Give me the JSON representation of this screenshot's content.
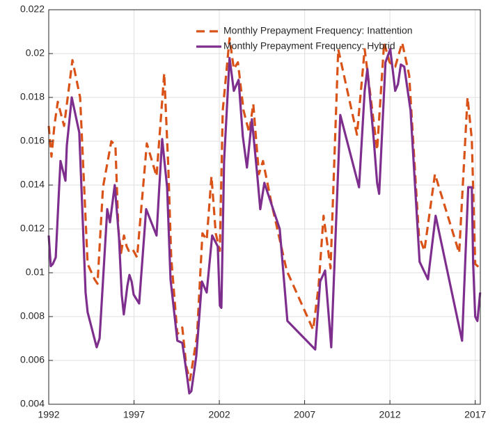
{
  "chart_data": {
    "type": "line",
    "xlim": [
      1992,
      2017.3
    ],
    "xticks": [
      1992,
      1997,
      2002,
      2007,
      2012,
      2017
    ],
    "ylim": [
      0.004,
      0.022
    ],
    "yticks": [
      0.004,
      0.006,
      0.008,
      0.01,
      0.012,
      0.014,
      0.016,
      0.018,
      0.02,
      0.022
    ],
    "grid": true,
    "legend": "upper right",
    "series": [
      {
        "name": "Monthly Prepayment Frequency: Inattention",
        "color": "#d95319",
        "linestyle": "dashed",
        "x": [
          1992.0,
          1992.16,
          1992.33,
          1992.53,
          1992.9,
          1993.39,
          1993.84,
          1994.28,
          1994.69,
          1994.86,
          1995.18,
          1995.67,
          1995.91,
          1996.08,
          1996.24,
          1996.41,
          1996.57,
          1996.69,
          1996.9,
          1997.18,
          1997.75,
          1998.32,
          1998.77,
          1999.01,
          1999.18,
          1999.54,
          1999.83,
          2000.07,
          2000.28,
          2000.69,
          2001.01,
          2001.26,
          2001.54,
          2001.79,
          2002.03,
          2002.2,
          2002.6,
          2002.85,
          2003.09,
          2003.42,
          2003.75,
          2003.99,
          2004.32,
          2004.56,
          2005.05,
          2005.95,
          2007.5,
          2007.82,
          2008.11,
          2008.52,
          2008.97,
          2010.07,
          2010.52,
          2010.92,
          2011.25,
          2011.66,
          2011.98,
          2012.31,
          2012.72,
          2013.13,
          2013.7,
          2014.02,
          2014.64,
          2016.06,
          2016.55,
          2016.8,
          2017.0,
          2017.29
        ],
        "values": [
          0.0167,
          0.0153,
          0.0167,
          0.0178,
          0.0167,
          0.0197,
          0.018,
          0.0104,
          0.0097,
          0.0095,
          0.0139,
          0.016,
          0.0158,
          0.012,
          0.0109,
          0.0117,
          0.0112,
          0.011,
          0.0111,
          0.0107,
          0.0159,
          0.0144,
          0.0191,
          0.0148,
          0.0107,
          0.0072,
          0.0075,
          0.0057,
          0.0051,
          0.0071,
          0.0118,
          0.0115,
          0.0144,
          0.0118,
          0.011,
          0.0174,
          0.0207,
          0.0193,
          0.0196,
          0.0174,
          0.0164,
          0.0177,
          0.0145,
          0.0151,
          0.0132,
          0.0101,
          0.0074,
          0.0094,
          0.0126,
          0.0102,
          0.0202,
          0.0163,
          0.0202,
          0.0177,
          0.0156,
          0.0205,
          0.0196,
          0.0194,
          0.0205,
          0.019,
          0.0117,
          0.011,
          0.0145,
          0.0109,
          0.018,
          0.0161,
          0.0104,
          0.0102
        ]
      },
      {
        "name": "Monthly Prepayment Frequency: Hybrid",
        "color": "#7e2f8e",
        "linestyle": "solid",
        "x": [
          1992.0,
          1992.12,
          1992.24,
          1992.41,
          1992.61,
          1992.69,
          1992.98,
          1993.06,
          1993.35,
          1993.79,
          1994.16,
          1994.28,
          1994.81,
          1994.98,
          1995.43,
          1995.59,
          1995.87,
          1996.12,
          1996.28,
          1996.4,
          1996.61,
          1996.73,
          1996.86,
          1996.98,
          1997.3,
          1997.71,
          1998.32,
          1998.48,
          1998.65,
          1998.94,
          1999.14,
          1999.54,
          1999.83,
          2000.07,
          2000.24,
          2000.36,
          2000.65,
          2000.98,
          2001.26,
          2001.58,
          2001.91,
          2002.03,
          2002.12,
          2002.28,
          2002.6,
          2002.85,
          2003.13,
          2003.38,
          2003.62,
          2003.91,
          2004.23,
          2004.4,
          2004.64,
          2005.54,
          2005.99,
          2007.62,
          2007.91,
          2008.2,
          2008.56,
          2009.09,
          2010.19,
          2010.52,
          2010.68,
          2011.05,
          2011.25,
          2011.37,
          2011.74,
          2012.02,
          2012.31,
          2012.47,
          2012.64,
          2012.84,
          2013.21,
          2013.74,
          2014.23,
          2014.68,
          2016.23,
          2016.59,
          2016.8,
          2016.88,
          2017.0,
          2017.13,
          2017.29
        ],
        "values": [
          0.0117,
          0.0103,
          0.0104,
          0.0107,
          0.0139,
          0.0151,
          0.0142,
          0.0158,
          0.018,
          0.0164,
          0.0091,
          0.0082,
          0.0066,
          0.007,
          0.0129,
          0.0123,
          0.014,
          0.0116,
          0.009,
          0.0081,
          0.0094,
          0.0099,
          0.0096,
          0.009,
          0.0086,
          0.0129,
          0.0117,
          0.0139,
          0.0161,
          0.0139,
          0.0097,
          0.0069,
          0.0068,
          0.0055,
          0.0045,
          0.0046,
          0.0062,
          0.0096,
          0.0091,
          0.0117,
          0.0112,
          0.0085,
          0.0084,
          0.0151,
          0.0198,
          0.0183,
          0.0188,
          0.0162,
          0.0148,
          0.017,
          0.0144,
          0.0129,
          0.0141,
          0.012,
          0.0078,
          0.0065,
          0.0096,
          0.0101,
          0.0066,
          0.0172,
          0.0139,
          0.0183,
          0.0193,
          0.0161,
          0.0141,
          0.0136,
          0.0196,
          0.0202,
          0.0183,
          0.0186,
          0.0195,
          0.0194,
          0.0174,
          0.0105,
          0.0097,
          0.0126,
          0.0069,
          0.0139,
          0.0139,
          0.0104,
          0.008,
          0.0078,
          0.0091
        ]
      }
    ]
  }
}
